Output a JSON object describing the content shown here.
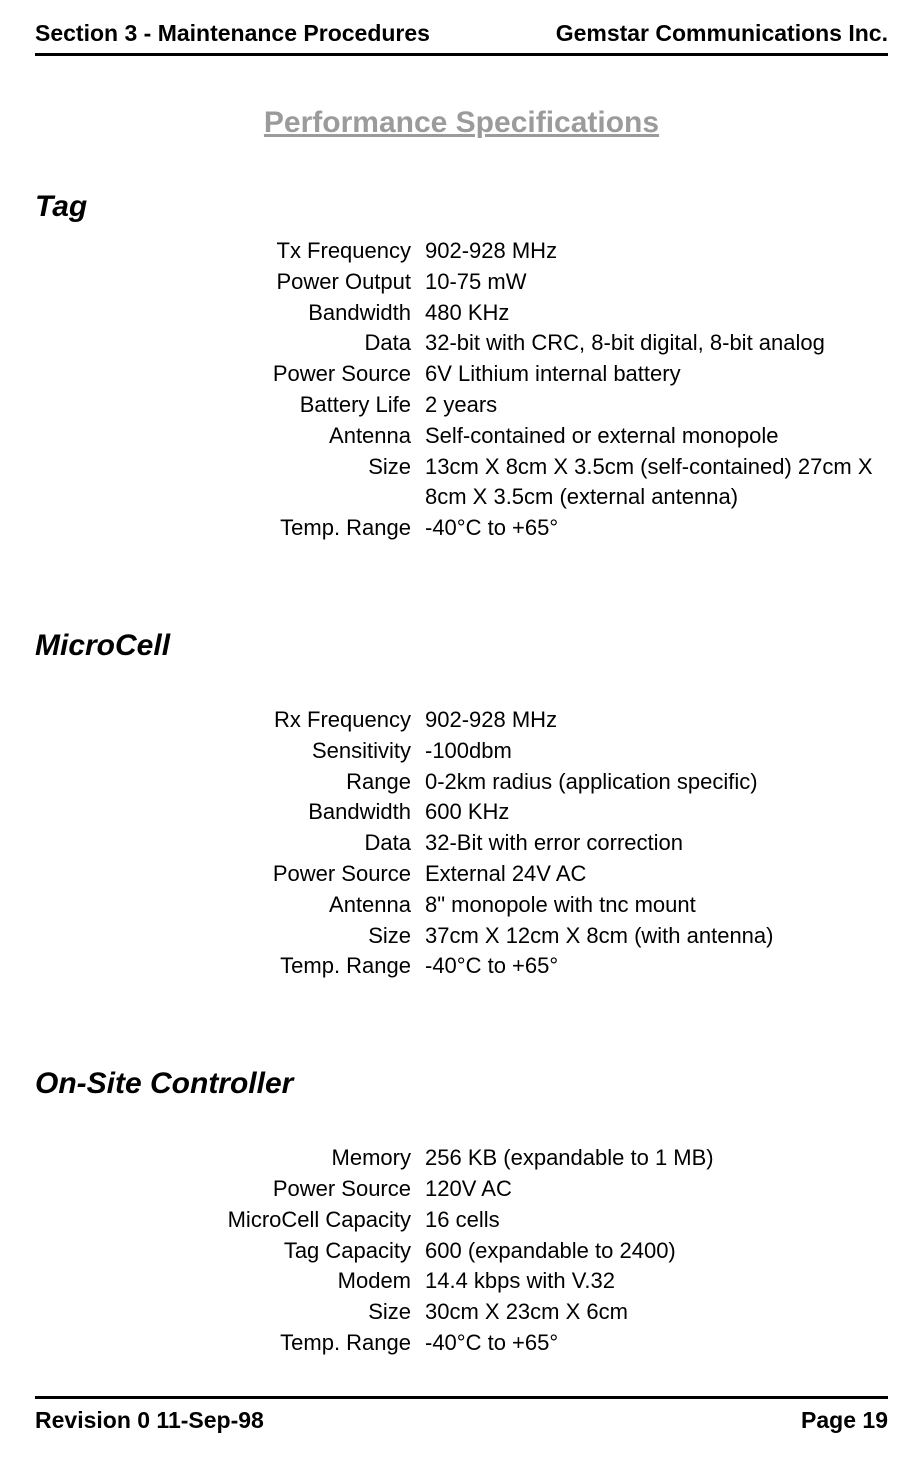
{
  "header": {
    "left": "Section 3 - Maintenance Procedures",
    "right": "Gemstar Communications Inc."
  },
  "title": "Performance Specifications",
  "sections": [
    {
      "heading": "Tag",
      "rows": [
        {
          "label": "Tx Frequency",
          "value": "902-928 MHz"
        },
        {
          "label": "Power Output",
          "value": "10-75 mW"
        },
        {
          "label": "Bandwidth",
          "value": "480 KHz"
        },
        {
          "label": "Data",
          "value": "32-bit with CRC, 8-bit digital, 8-bit analog"
        },
        {
          "label": "Power Source",
          "value": "6V Lithium internal battery"
        },
        {
          "label": "Battery Life",
          "value": "2 years"
        },
        {
          "label": "Antenna",
          "value": "Self-contained or external monopole"
        },
        {
          "label": "Size",
          "value": "13cm X 8cm X 3.5cm (self-contained) 27cm X 8cm X 3.5cm (external antenna)"
        },
        {
          "label": "Temp. Range",
          "value": "-40°C to +65°"
        }
      ]
    },
    {
      "heading": "MicroCell",
      "rows": [
        {
          "label": "Rx Frequency",
          "value": "902-928 MHz"
        },
        {
          "label": "Sensitivity",
          "value": "-100dbm"
        },
        {
          "label": "Range",
          "value": "0-2km radius (application specific)"
        },
        {
          "label": "Bandwidth",
          "value": "600 KHz"
        },
        {
          "label": "Data",
          "value": "32-Bit with error correction"
        },
        {
          "label": "Power Source",
          "value": "External 24V AC"
        },
        {
          "label": "Antenna",
          "value": "8\" monopole with tnc mount"
        },
        {
          "label": "Size",
          "value": "37cm X 12cm X 8cm (with antenna)"
        },
        {
          "label": "Temp. Range",
          "value": "-40°C to +65°"
        }
      ]
    },
    {
      "heading": "On-Site Controller",
      "rows": [
        {
          "label": "Memory",
          "value": "256 KB (expandable to 1 MB)"
        },
        {
          "label": "Power Source",
          "value": "120V AC"
        },
        {
          "label": "MicroCell Capacity",
          "value": "16 cells"
        },
        {
          "label": "Tag Capacity",
          "value": "600 (expandable to 2400)"
        },
        {
          "label": "Modem",
          "value": "14.4 kbps with V.32"
        },
        {
          "label": "Size",
          "value": "30cm X 23cm X 6cm"
        },
        {
          "label": "Temp. Range",
          "value": "-40°C to +65°"
        }
      ]
    }
  ],
  "footer": {
    "left": "Revision 0  11-Sep-98",
    "right": "Page 19"
  }
}
